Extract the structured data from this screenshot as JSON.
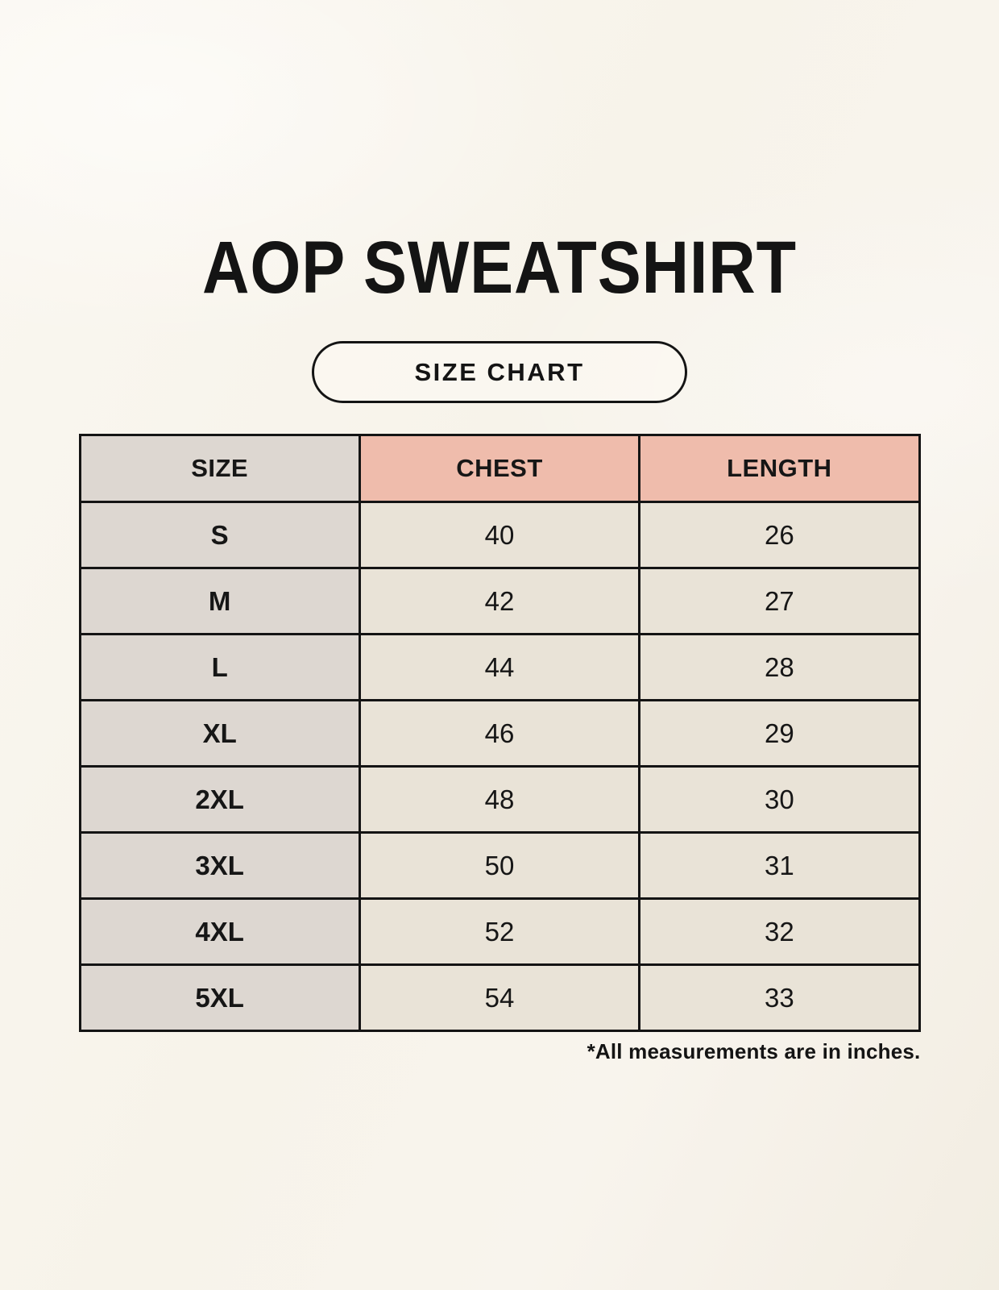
{
  "header": {
    "title": "AOP SWEATSHIRT",
    "badge_label": "SIZE CHART"
  },
  "chart_data": {
    "type": "table",
    "title": "AOP SWEATSHIRT size chart",
    "columns": [
      "SIZE",
      "CHEST",
      "LENGTH"
    ],
    "rows": [
      [
        "S",
        "40",
        "26"
      ],
      [
        "M",
        "42",
        "27"
      ],
      [
        "L",
        "44",
        "28"
      ],
      [
        "XL",
        "46",
        "29"
      ],
      [
        "2XL",
        "48",
        "30"
      ],
      [
        "3XL",
        "50",
        "31"
      ],
      [
        "4XL",
        "52",
        "32"
      ],
      [
        "5XL",
        "54",
        "33"
      ]
    ],
    "units": "inches",
    "layout": {
      "size_column_bg": "#DDD7D1",
      "header_accent_bg": "#EFBCAC",
      "data_cell_bg": "#E9E3D7",
      "border_color": "#141414"
    }
  },
  "footer": {
    "note": "*All measurements are in inches."
  },
  "colors": {
    "page_background": "#F8F4ED",
    "gray_cell": "#DDD7D1",
    "salmon_header": "#EFBCAC",
    "cream_cell": "#E9E3D7",
    "text": "#141414"
  }
}
